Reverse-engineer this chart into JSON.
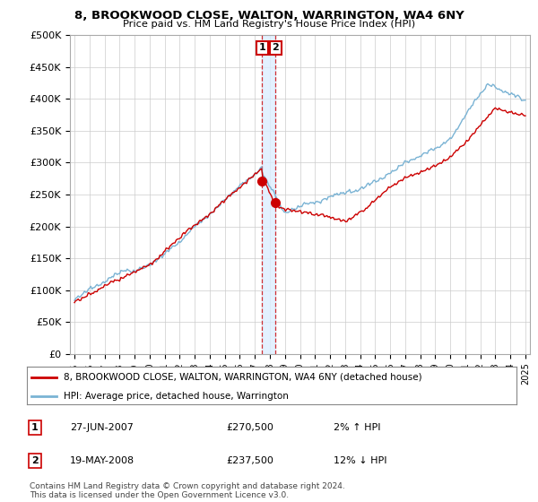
{
  "title": "8, BROOKWOOD CLOSE, WALTON, WARRINGTON, WA4 6NY",
  "subtitle": "Price paid vs. HM Land Registry's House Price Index (HPI)",
  "ylabel_ticks": [
    "£0",
    "£50K",
    "£100K",
    "£150K",
    "£200K",
    "£250K",
    "£300K",
    "£350K",
    "£400K",
    "£450K",
    "£500K"
  ],
  "ytick_values": [
    0,
    50000,
    100000,
    150000,
    200000,
    250000,
    300000,
    350000,
    400000,
    450000,
    500000
  ],
  "ylim": [
    0,
    500000
  ],
  "xlim_start": 1994.7,
  "xlim_end": 2025.3,
  "hpi_color": "#7ab3d4",
  "price_color": "#cc0000",
  "transaction1_date": 2007.49,
  "transaction1_price": 270500,
  "transaction2_date": 2008.38,
  "transaction2_price": 237500,
  "legend_property": "8, BROOKWOOD CLOSE, WALTON, WARRINGTON, WA4 6NY (detached house)",
  "legend_hpi": "HPI: Average price, detached house, Warrington",
  "annotation1_label": "1",
  "annotation1_date": "27-JUN-2007",
  "annotation1_price": "£270,500",
  "annotation1_hpi": "2% ↑ HPI",
  "annotation2_label": "2",
  "annotation2_date": "19-MAY-2008",
  "annotation2_price": "£237,500",
  "annotation2_hpi": "12% ↓ HPI",
  "footer": "Contains HM Land Registry data © Crown copyright and database right 2024.\nThis data is licensed under the Open Government Licence v3.0.",
  "background_color": "#ffffff",
  "grid_color": "#cccccc",
  "band_color": "#ddeeff"
}
